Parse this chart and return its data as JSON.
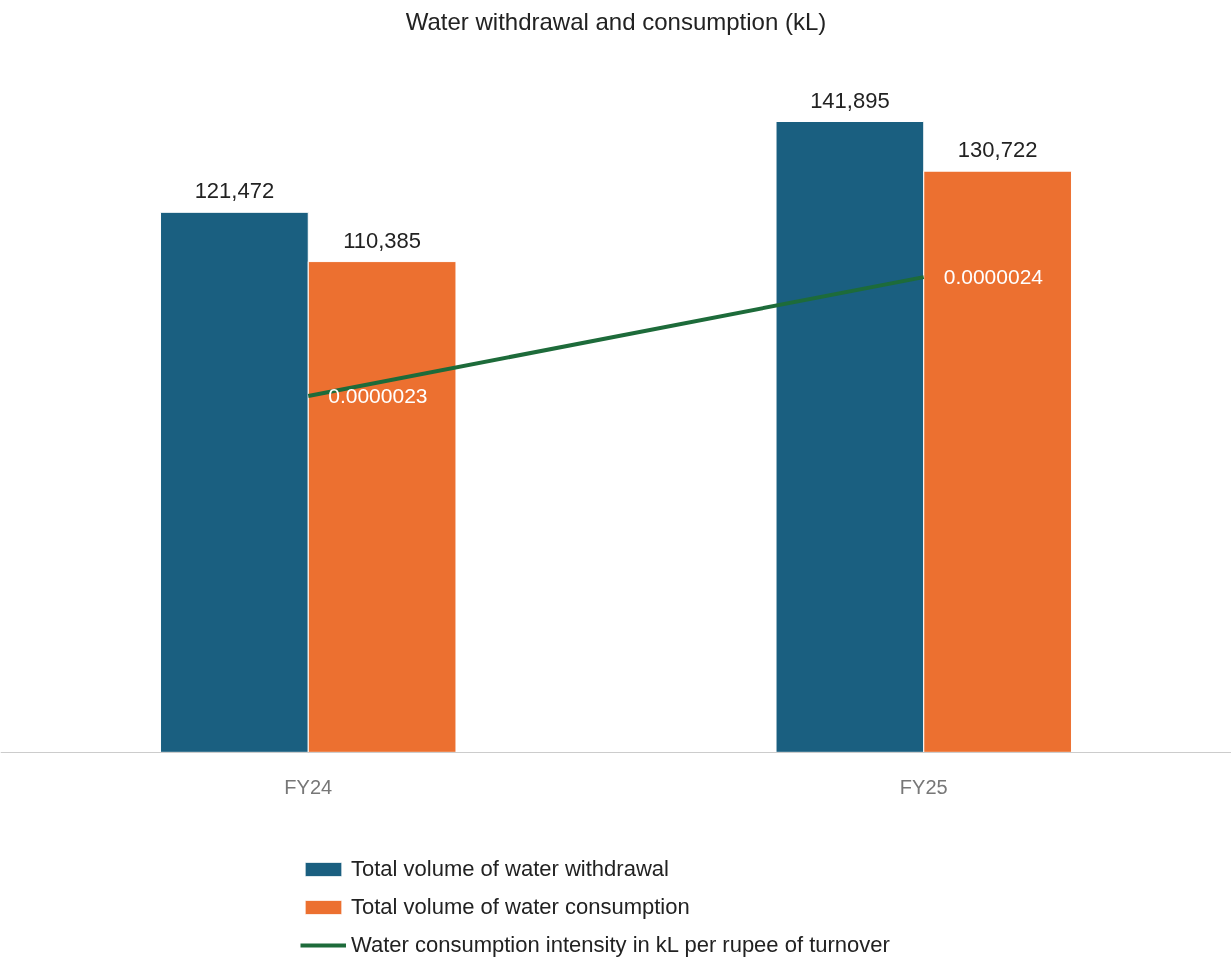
{
  "chart_data": {
    "type": "bar",
    "title": "Water withdrawal and consumption (kL)",
    "categories": [
      "FY24",
      "FY25"
    ],
    "series": [
      {
        "name": "Total volume of water withdrawal",
        "color": "#1a5f80",
        "values": [
          121472,
          141895
        ],
        "value_labels": [
          "121,472",
          "141,895"
        ]
      },
      {
        "name": "Total volume of water consumption",
        "color": "#ec7030",
        "values": [
          110385,
          130722
        ],
        "value_labels": [
          "110,385",
          "130,722"
        ]
      },
      {
        "name": "Water consumption intensity in kL per rupee of turnover",
        "type": "line",
        "axis": "y2",
        "color": "#1d6b3a",
        "values": [
          2.3e-06,
          2.4e-06
        ],
        "value_labels": [
          "0.0000023",
          "0.0000024"
        ]
      }
    ],
    "tick_labels": "x",
    "grid": false,
    "legend": "bottom",
    "marker": "none",
    "line_style": "solid"
  }
}
